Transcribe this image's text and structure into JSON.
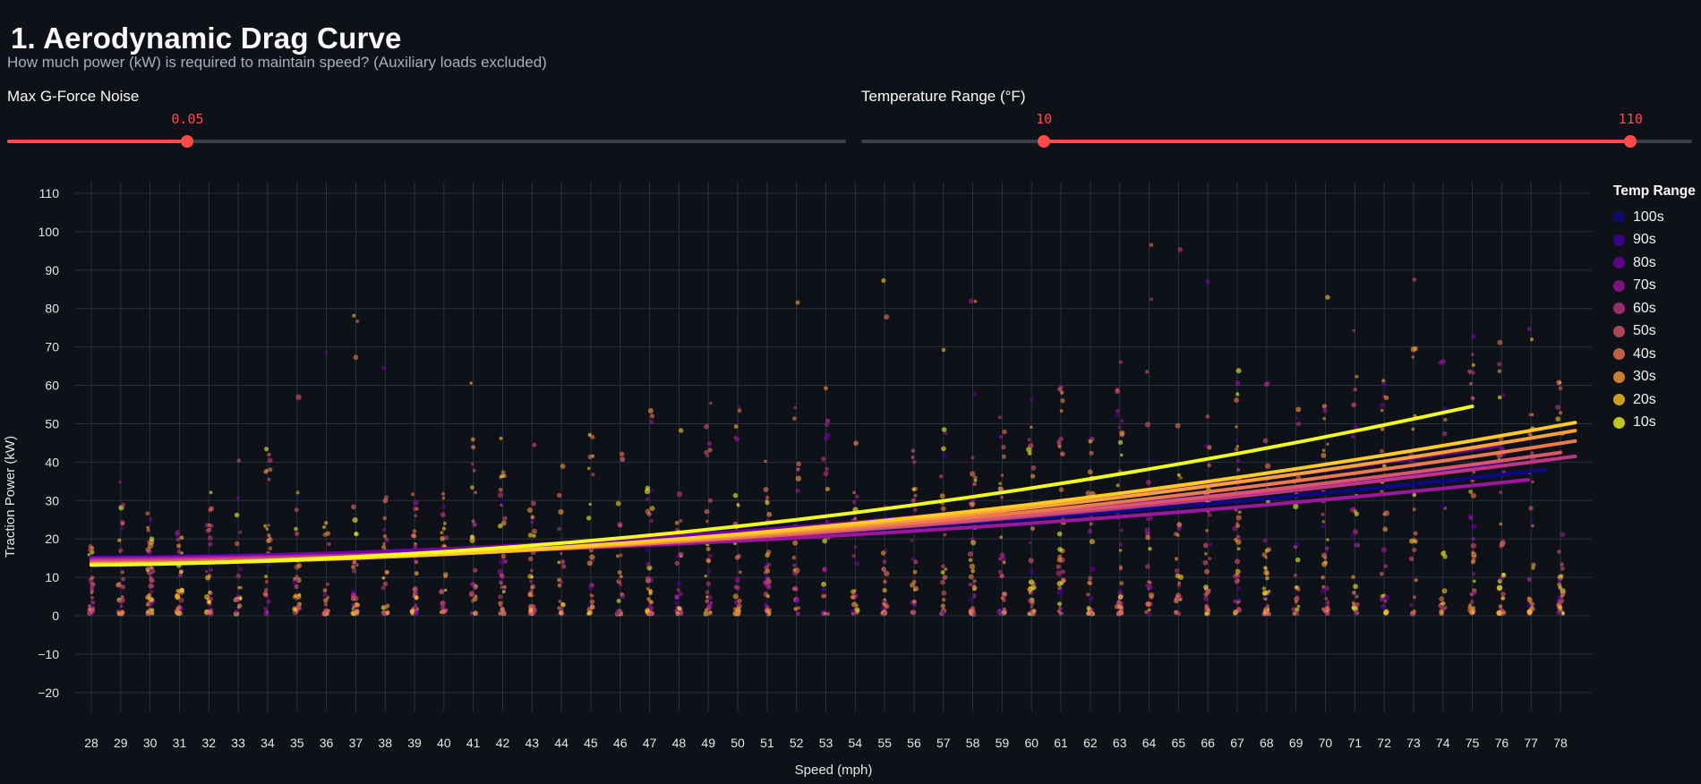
{
  "page": {
    "title": "1. Aerodynamic Drag Curve",
    "subtitle": "How much power (kW) is required to maintain speed? (Auxiliary loads excluded)"
  },
  "colors": {
    "background": "#0e1117",
    "accent": "#ff4b4b",
    "grid": "#2c313b",
    "text": "#fafafa",
    "muted_text": "#a9aeb8",
    "tick_text": "#e3e6ea",
    "slider_track": "#3b3e46"
  },
  "controls": {
    "gforce_slider": {
      "label": "Max G-Force Noise",
      "value": "0.05",
      "percent": 21.5
    },
    "temp_slider": {
      "label": "Temperature Range (°F)",
      "low_value": "10",
      "high_value": "110",
      "low_percent": 22.0,
      "high_percent": 92.6
    }
  },
  "chart_data": {
    "type": "scatter",
    "title": "",
    "xlabel": "Speed (mph)",
    "ylabel": "Traction Power (kW)",
    "legend_title": "Temp Range",
    "legend_position": "right-top",
    "grid": true,
    "x_range": [
      27.5,
      79.1
    ],
    "y_range": [
      -25,
      112.6
    ],
    "x_ticks": [
      28,
      29,
      30,
      31,
      32,
      33,
      34,
      35,
      36,
      37,
      38,
      39,
      40,
      41,
      42,
      43,
      44,
      45,
      46,
      47,
      48,
      49,
      50,
      51,
      52,
      53,
      54,
      55,
      56,
      57,
      58,
      59,
      60,
      61,
      62,
      63,
      64,
      65,
      66,
      67,
      68,
      69,
      70,
      71,
      72,
      73,
      74,
      75,
      76,
      77,
      78
    ],
    "y_ticks": [
      -20,
      -10,
      0,
      10,
      20,
      30,
      40,
      50,
      60,
      70,
      80,
      90,
      100,
      110
    ],
    "curve_bend": 0.05,
    "series": [
      {
        "label": "100s",
        "color": "#0d0887",
        "y_start": 15.3,
        "x_end": 77.5,
        "y_end": 38.0
      },
      {
        "label": "90s",
        "color": "#46039f",
        "y_start": 15.1,
        "x_end": 76.0,
        "y_end": 40.0
      },
      {
        "label": "80s",
        "color": "#7201a8",
        "y_start": 15.0,
        "x_end": 75.9,
        "y_end": 44.3
      },
      {
        "label": "70s",
        "color": "#9c179e",
        "y_start": 14.8,
        "x_end": 76.9,
        "y_end": 35.4
      },
      {
        "label": "60s",
        "color": "#bd3786",
        "y_start": 14.4,
        "x_end": 78.5,
        "y_end": 41.5
      },
      {
        "label": "50s",
        "color": "#d8576b",
        "y_start": 14.0,
        "x_end": 78.0,
        "y_end": 42.5
      },
      {
        "label": "40s",
        "color": "#ed7953",
        "y_start": 13.6,
        "x_end": 78.5,
        "y_end": 45.5
      },
      {
        "label": "30s",
        "color": "#fb9f3a",
        "y_start": 13.4,
        "x_end": 78.5,
        "y_end": 48.2
      },
      {
        "label": "20s",
        "color": "#fdca26",
        "y_start": 13.3,
        "x_end": 78.5,
        "y_end": 50.3
      },
      {
        "label": "10s",
        "color": "#f0f921",
        "y_start": 13.2,
        "x_end": 75.0,
        "y_end": 54.5
      }
    ],
    "trend_line_width": 4,
    "scatter_cloud": {
      "seed": 1337,
      "points_per_speed": 32,
      "speed_min": 28,
      "speed_max": 78,
      "base_top": 30,
      "top_slope": 0.85,
      "top_wobble": 9,
      "power": 2.3,
      "y_floor": 0.5,
      "y_cap": 106,
      "outlier_rate": 0.013,
      "outlier_base": 55,
      "outlier_span": 20,
      "outlier_slope": 0.6,
      "x_jitter": 0.09,
      "dot_opacity": 0.6,
      "decade_weights": [
        0.02,
        0.03,
        0.05,
        0.09,
        0.13,
        0.16,
        0.18,
        0.15,
        0.1,
        0.09
      ]
    }
  }
}
